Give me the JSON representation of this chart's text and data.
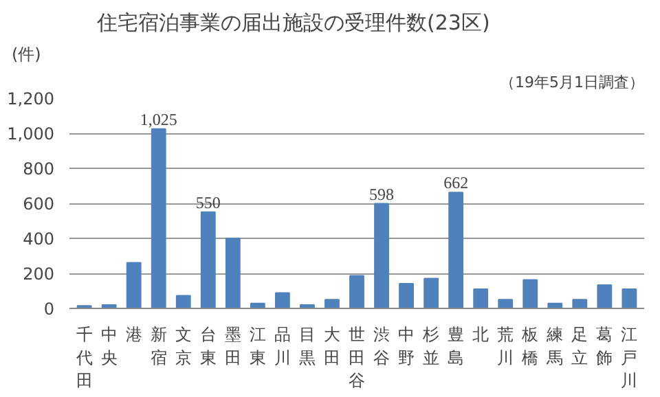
{
  "chart_data": {
    "type": "bar",
    "title": "住宅宿泊事業の届出施設の受理件数(23区)",
    "subtitle": "（19年5月1日調査）",
    "ylabel": "(件)",
    "categories": [
      "千代田",
      "中央",
      "港",
      "新宿",
      "文京",
      "台東",
      "墨田",
      "江東",
      "品川",
      "目黒",
      "大田",
      "世田谷",
      "渋谷",
      "中野",
      "杉並",
      "豊島",
      "北",
      "荒川",
      "板橋",
      "練馬",
      "足立",
      "葛飾",
      "江戸川"
    ],
    "values": [
      15,
      20,
      261,
      1025,
      73,
      550,
      400,
      28,
      88,
      20,
      50,
      186,
      598,
      141,
      171,
      662,
      110,
      50,
      163,
      28,
      50,
      133,
      110
    ],
    "value_labels": [
      null,
      null,
      null,
      "1,025",
      null,
      "550",
      null,
      null,
      null,
      null,
      null,
      null,
      "598",
      null,
      null,
      "662",
      null,
      null,
      null,
      null,
      null,
      null,
      null
    ],
    "color": "#4f81bd",
    "ylim": [
      0,
      1200
    ],
    "yticks": [
      {
        "value": 0,
        "label": "0"
      },
      {
        "value": 200,
        "label": "200"
      },
      {
        "value": 400,
        "label": "400"
      },
      {
        "value": 600,
        "label": "600"
      },
      {
        "value": 800,
        "label": "800"
      },
      {
        "value": 1000,
        "label": "1,000"
      },
      {
        "value": 1200,
        "label": "1,200"
      }
    ],
    "grid": "y"
  }
}
